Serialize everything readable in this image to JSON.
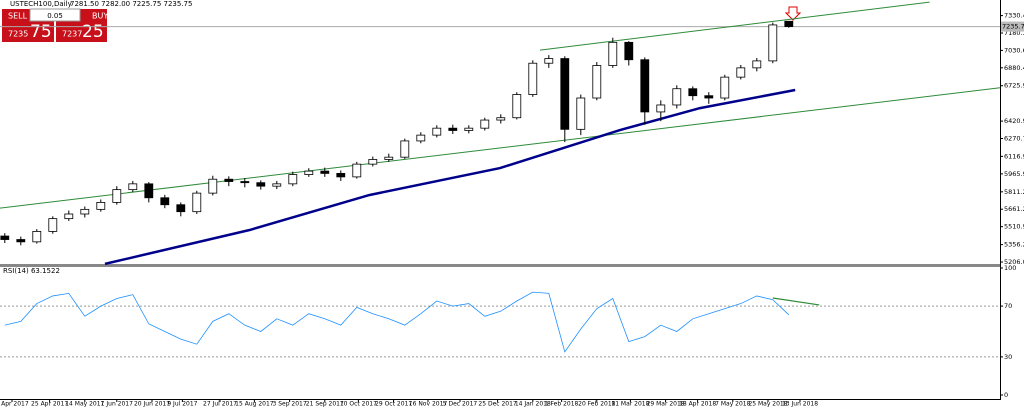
{
  "chart_data": [
    {
      "type": "candlestick",
      "title": "USTECH100,Daily",
      "subtitle": "7281.50 7282.00 7225.75 7235.75",
      "x": [
        0,
        1,
        2,
        3,
        4,
        5,
        6,
        7,
        8,
        9,
        10,
        11,
        12,
        13,
        14,
        15,
        16,
        17,
        18,
        19,
        20,
        21,
        22,
        23,
        24,
        25,
        26,
        27,
        28,
        29,
        30,
        31,
        32,
        33,
        34,
        35,
        36,
        37,
        38,
        39,
        40,
        41,
        42,
        43,
        44,
        45,
        46,
        47,
        48,
        49
      ],
      "open": [
        5430,
        5400,
        5380,
        5470,
        5580,
        5620,
        5660,
        5720,
        5830,
        5880,
        5760,
        5700,
        5640,
        5800,
        5920,
        5900,
        5890,
        5860,
        5880,
        5960,
        5990,
        5970,
        5940,
        6050,
        6090,
        6110,
        6250,
        6300,
        6360,
        6340,
        6360,
        6430,
        6450,
        6650,
        6920,
        6960,
        6350,
        6620,
        6900,
        7100,
        6950,
        6500,
        6560,
        6700,
        6640,
        6620,
        6800,
        6880,
        6940,
        7281.5
      ],
      "high": [
        5455,
        5425,
        5490,
        5600,
        5650,
        5685,
        5745,
        5860,
        5905,
        5895,
        5785,
        5720,
        5820,
        5950,
        5945,
        5930,
        5910,
        5905,
        5985,
        6015,
        6020,
        5995,
        6070,
        6115,
        6140,
        6270,
        6325,
        6385,
        6390,
        6385,
        6450,
        6480,
        6670,
        6945,
        6990,
        6980,
        6650,
        6930,
        7140,
        7110,
        6970,
        6600,
        6730,
        6720,
        6670,
        6820,
        6905,
        6965,
        7270,
        7282
      ],
      "low": [
        5370,
        5350,
        5365,
        5450,
        5560,
        5590,
        5640,
        5700,
        5810,
        5720,
        5670,
        5600,
        5620,
        5780,
        5860,
        5850,
        5830,
        5835,
        5860,
        5940,
        5940,
        5905,
        5925,
        6030,
        6070,
        6095,
        6230,
        6280,
        6310,
        6315,
        6340,
        6400,
        6435,
        6630,
        6880,
        6240,
        6300,
        6600,
        6880,
        6900,
        6390,
        6420,
        6530,
        6600,
        6570,
        6600,
        6780,
        6850,
        6920,
        7225.75
      ],
      "close": [
        5400,
        5380,
        5470,
        5580,
        5620,
        5660,
        5720,
        5830,
        5880,
        5760,
        5700,
        5640,
        5800,
        5920,
        5900,
        5890,
        5860,
        5880,
        5960,
        5990,
        5970,
        5940,
        6050,
        6090,
        6110,
        6250,
        6300,
        6360,
        6340,
        6360,
        6430,
        6450,
        6650,
        6920,
        6960,
        6350,
        6620,
        6900,
        7100,
        6950,
        6500,
        6560,
        6700,
        6640,
        6620,
        6800,
        6880,
        6940,
        7250,
        7235.75
      ],
      "up_color": "#ffffff",
      "down_color": "#000000",
      "xlim": [
        -0.3,
        62.2
      ],
      "xticks": [
        {
          "value": 0.45,
          "label": "5 Apr 2017"
        },
        {
          "value": 2.8,
          "label": "25 Apr 2017"
        },
        {
          "value": 5.0,
          "label": "14 May 2017"
        },
        {
          "value": 7.0,
          "label": "1 Jun 2017"
        },
        {
          "value": 9.2,
          "label": "20 Jun 2017"
        },
        {
          "value": 11.1,
          "label": "9 Jul 2017"
        },
        {
          "value": 13.45,
          "label": "27 Jul 2017"
        },
        {
          "value": 15.6,
          "label": "15 Aug 2017"
        },
        {
          "value": 17.8,
          "label": "3 Sep 2017"
        },
        {
          "value": 20.0,
          "label": "21 Sep 2017"
        },
        {
          "value": 22.1,
          "label": "10 Oct 2017"
        },
        {
          "value": 24.3,
          "label": "29 Oct 2017"
        },
        {
          "value": 26.45,
          "label": "16 Nov 2017"
        },
        {
          "value": 28.45,
          "label": "5 Dec 2017"
        },
        {
          "value": 30.8,
          "label": "25 Dec 2017"
        },
        {
          "value": 33.0,
          "label": "14 Jan 2018"
        },
        {
          "value": 34.8,
          "label": "1 Feb 2018"
        },
        {
          "value": 37.0,
          "label": "20 Feb 2018"
        },
        {
          "value": 39.1,
          "label": "11 Mar 2018"
        },
        {
          "value": 41.3,
          "label": "29 Mar 2018"
        },
        {
          "value": 43.3,
          "label": "18 Apr 2018"
        },
        {
          "value": 45.5,
          "label": "7 May 2018"
        },
        {
          "value": 47.7,
          "label": "25 May 2018"
        },
        {
          "value": 49.7,
          "label": "13 Jun 2018"
        }
      ],
      "ylim": [
        5189,
        7396
      ],
      "yticks": [
        {
          "value": 7330.45,
          "label": "7330.45"
        },
        {
          "value": 7180.3,
          "label": "7180.30"
        },
        {
          "value": 7030.6,
          "label": "7030.60"
        },
        {
          "value": 6880.45,
          "label": "6880.45"
        },
        {
          "value": 6725.9,
          "label": "6725.90"
        },
        {
          "value": 6420.9,
          "label": "6420.90"
        },
        {
          "value": 6270.75,
          "label": "6270.75"
        },
        {
          "value": 6116.9,
          "label": "6116.90"
        },
        {
          "value": 5965.9,
          "label": "5965.90"
        },
        {
          "value": 5811.2,
          "label": "5811.20"
        },
        {
          "value": 5661.25,
          "label": "5661.25"
        },
        {
          "value": 5510.9,
          "label": "5510.90"
        },
        {
          "value": 5356.2,
          "label": "5356.20"
        },
        {
          "value": 5206.05,
          "label": "5206.05"
        }
      ],
      "current_price": {
        "value": 7235.75,
        "label": "7235.75"
      },
      "moving_average": {
        "color": "#00008b",
        "x": [
          6.26,
          15.3,
          22.8,
          30.95,
          38.45,
          43.45,
          49.4
        ],
        "values": [
          5190,
          5482,
          5784,
          6016,
          6344,
          6533,
          6689
        ]
      },
      "trendlines": [
        {
          "color": "#2e8b3a",
          "x": [
            33.45,
            57.8
          ],
          "values": [
            7033,
            7447
          ]
        },
        {
          "color": "#2e8b3a",
          "x": [
            -0.3,
            62.2
          ],
          "values": [
            5671,
            6708
          ]
        }
      ],
      "trade_panel": {
        "sell": "SELL",
        "buy": "BUY",
        "lots": "0.05",
        "bid_big": "7235",
        "bid_small": "75",
        "ask_big": "7237",
        "ask_small": "25"
      }
    },
    {
      "type": "line",
      "title": "RSI(14) 63.1522",
      "color": "#1e90ff",
      "x": [
        0,
        1,
        2,
        3,
        4,
        5,
        6,
        7,
        8,
        9,
        10,
        11,
        12,
        13,
        14,
        15,
        16,
        17,
        18,
        19,
        20,
        21,
        22,
        23,
        24,
        25,
        26,
        27,
        28,
        29,
        30,
        31,
        32,
        33,
        34,
        35,
        36,
        37,
        38,
        39,
        40,
        41,
        42,
        43,
        44,
        45,
        46,
        47,
        48,
        49
      ],
      "values": [
        55,
        58,
        72,
        78,
        80,
        62,
        70,
        76,
        79,
        56,
        50,
        44,
        40,
        58,
        64,
        55,
        50,
        60,
        55,
        64,
        60,
        55,
        69,
        64,
        60,
        55,
        64,
        74,
        70,
        72,
        62,
        66,
        74,
        81,
        80,
        34,
        52,
        68,
        76,
        42,
        46,
        55,
        50,
        60,
        64,
        68,
        72,
        78,
        75,
        63.1522
      ],
      "xlim": [
        -0.3,
        62.2
      ],
      "ylim": [
        0,
        100
      ],
      "yticks": [
        0,
        30,
        70,
        100
      ],
      "levels": [
        30,
        70
      ],
      "trendline": {
        "color": "#2e8b3a",
        "x": [
          48.0,
          50.9
        ],
        "values": [
          76.4,
          70.9
        ]
      }
    }
  ]
}
